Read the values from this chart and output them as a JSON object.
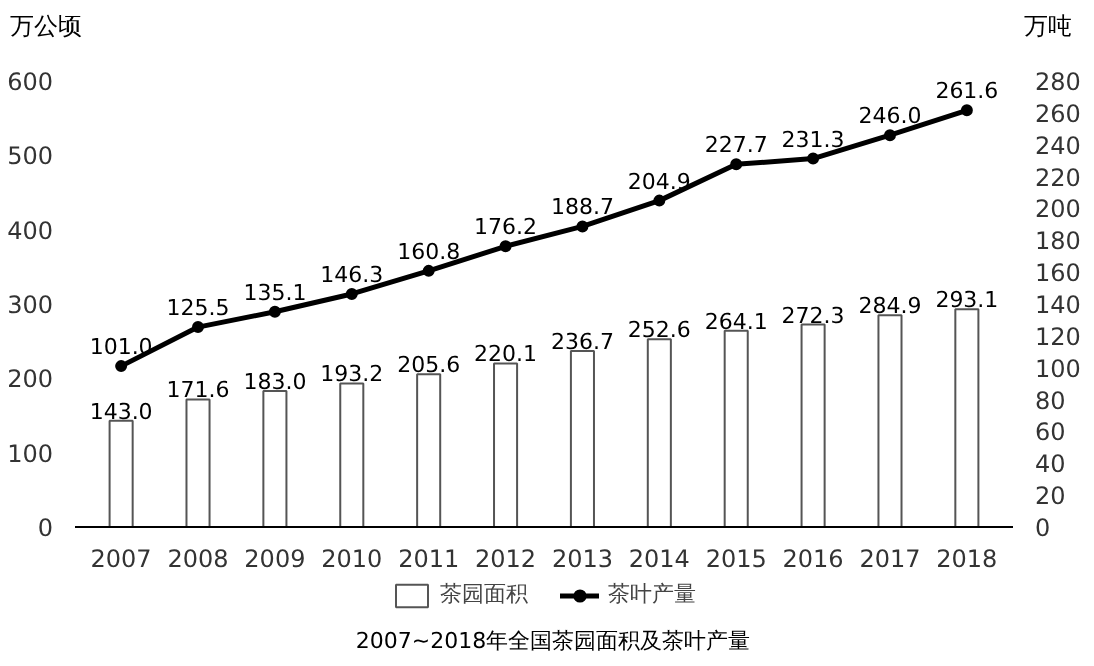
{
  "chart_data": {
    "type": "bar",
    "title": "2007~2018年全国茶园面积及茶叶产量",
    "ylabel": "万公顷",
    "y2label": "万吨",
    "categories": [
      "2007",
      "2008",
      "2009",
      "2010",
      "2011",
      "2012",
      "2013",
      "2014",
      "2015",
      "2016",
      "2017",
      "2018"
    ],
    "series": [
      {
        "name": "茶园面积",
        "color": "#ffffff",
        "values": [
          143.0,
          171.6,
          183.0,
          193.2,
          205.6,
          220.1,
          236.7,
          252.6,
          264.1,
          272.3,
          284.9,
          293.1
        ],
        "value_labels": [
          "143.0",
          "171.6",
          "183.0",
          "193.2",
          "205.6",
          "220.1",
          "236.7",
          "252.6",
          "264.1",
          "272.3",
          "284.9",
          "293.1"
        ]
      },
      {
        "name": "茶叶产量",
        "type": "line",
        "axis": "y2",
        "color": "#000000",
        "marker": "circle",
        "values": [
          101.0,
          125.5,
          135.1,
          146.3,
          160.8,
          176.2,
          188.7,
          204.9,
          227.7,
          231.3,
          246.0,
          261.6
        ],
        "value_labels": [
          "101.0",
          "125.5",
          "135.1",
          "146.3",
          "160.8",
          "176.2",
          "188.7",
          "204.9",
          "227.7",
          "231.3",
          "246.0",
          "261.6"
        ]
      }
    ],
    "ylim": [
      0,
      600
    ],
    "yticks": [
      0,
      100,
      200,
      300,
      400,
      500,
      600
    ],
    "y2lim": [
      0,
      280
    ],
    "y2ticks": [
      0,
      20,
      40,
      60,
      80,
      100,
      120,
      140,
      160,
      180,
      200,
      220,
      240,
      260,
      280
    ],
    "legend": "bottom",
    "grid": false
  }
}
